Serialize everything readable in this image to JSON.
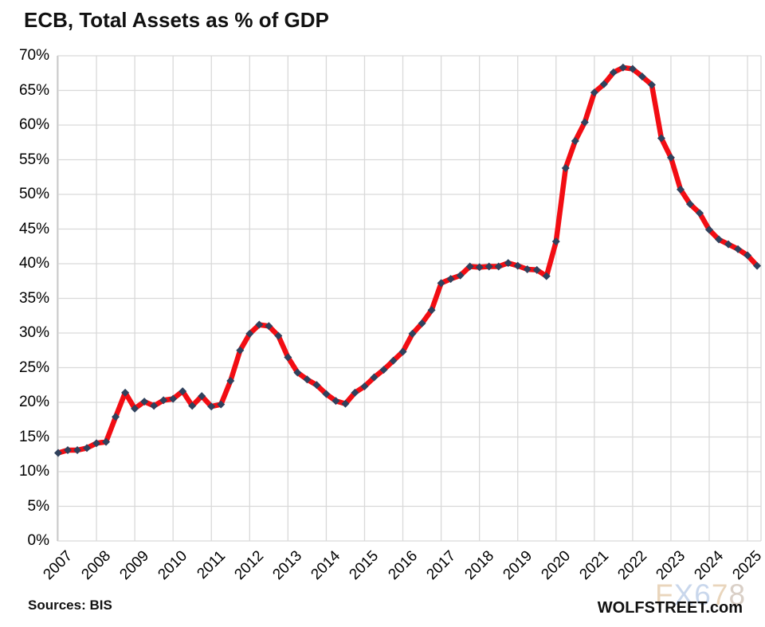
{
  "title": "ECB, Total Assets as % of GDP",
  "footer": {
    "sources": "Sources: BIS",
    "brand": "WOLFSTREET.com"
  },
  "watermark": {
    "text": "FX678",
    "letter_colors": [
      "#e9d5bc",
      "#c9d7ec",
      "#c9d7ec",
      "#e9d5bc",
      "#d9cfc6"
    ]
  },
  "colors": {
    "line": "#f20d13",
    "marker": "#30415c",
    "grid": "#d9d9d9",
    "axis": "#c2c2c2",
    "text": "#000000"
  },
  "chart_data": {
    "type": "line",
    "title": "ECB, Total Assets as % of GDP",
    "source_note": "Sources: BIS",
    "x_unit": "quarter",
    "x_start": "2007Q1",
    "x_end": "2025Q2",
    "xtick_labels": [
      "2007",
      "2008",
      "2009",
      "2010",
      "2011",
      "2012",
      "2013",
      "2014",
      "2015",
      "2016",
      "2017",
      "2018",
      "2019",
      "2020",
      "2021",
      "2022",
      "2023",
      "2024",
      "2025"
    ],
    "ytick_labels": [
      "0%",
      "5%",
      "10%",
      "15%",
      "20%",
      "25%",
      "30%",
      "35%",
      "40%",
      "45%",
      "50%",
      "55%",
      "60%",
      "65%",
      "70%"
    ],
    "ylim": [
      0,
      70
    ],
    "ytick_step": 5,
    "grid": true,
    "legend": false,
    "series": [
      {
        "name": "ECB total assets as % of GDP",
        "values": [
          12.7,
          13.1,
          13.1,
          13.4,
          14.1,
          14.3,
          17.9,
          21.4,
          19.1,
          20.1,
          19.5,
          20.3,
          20.5,
          21.6,
          19.5,
          20.9,
          19.4,
          19.7,
          23.1,
          27.5,
          29.9,
          31.2,
          31.0,
          29.6,
          26.5,
          24.3,
          23.3,
          22.5,
          21.2,
          20.2,
          19.8,
          21.4,
          22.3,
          23.6,
          24.7,
          26.0,
          27.3,
          29.9,
          31.4,
          33.3,
          37.2,
          37.8,
          38.3,
          39.6,
          39.5,
          39.6,
          39.6,
          40.1,
          39.7,
          39.2,
          39.1,
          38.2,
          43.2,
          53.8,
          57.7,
          60.4,
          64.7,
          65.9,
          67.6,
          68.3,
          68.1,
          67.0,
          65.8,
          58.1,
          55.3,
          50.7,
          48.6,
          47.3,
          44.9,
          43.5,
          42.8,
          42.1,
          41.2,
          39.7
        ]
      }
    ]
  }
}
